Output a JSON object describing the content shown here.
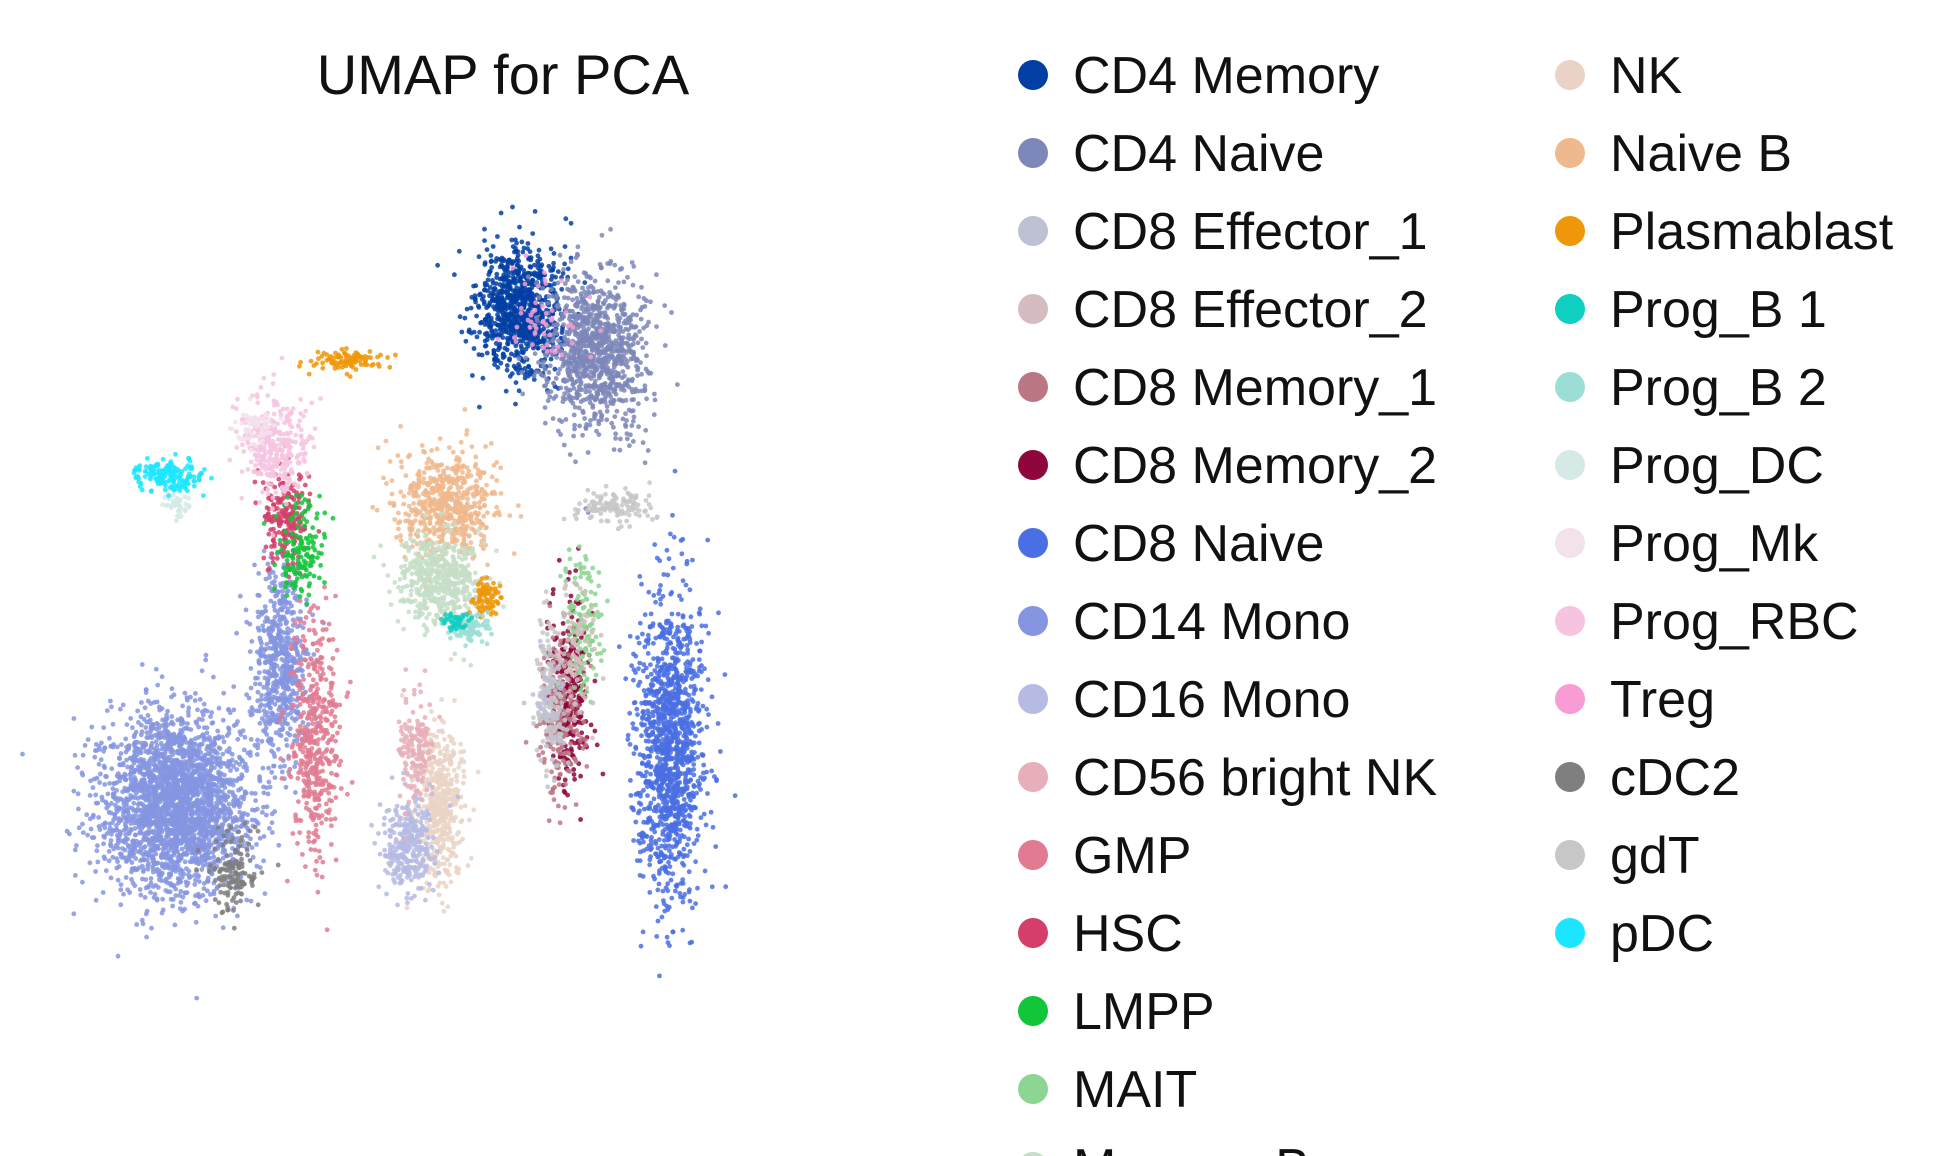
{
  "chart_data": {
    "type": "scatter",
    "title": "UMAP for PCA",
    "xlabel": "",
    "ylabel": "",
    "grid": false,
    "axes_visible": false,
    "legend_placement": "right, two columns",
    "categories": [
      {
        "name": "CD4 Memory",
        "color": "#023fa5"
      },
      {
        "name": "CD4 Naive",
        "color": "#7d87b9"
      },
      {
        "name": "CD8 Effector_1",
        "color": "#bec1d4"
      },
      {
        "name": "CD8 Effector_2",
        "color": "#d6bcc0"
      },
      {
        "name": "CD8 Memory_1",
        "color": "#bb7784"
      },
      {
        "name": "CD8 Memory_2",
        "color": "#8e063b"
      },
      {
        "name": "CD8 Naive",
        "color": "#4a6fe3"
      },
      {
        "name": "CD14 Mono",
        "color": "#8595e1"
      },
      {
        "name": "CD16 Mono",
        "color": "#b5bbe3"
      },
      {
        "name": "CD56 bright NK",
        "color": "#e6afb9"
      },
      {
        "name": "GMP",
        "color": "#e07b91"
      },
      {
        "name": "HSC",
        "color": "#d33f6a"
      },
      {
        "name": "LMPP",
        "color": "#11c638"
      },
      {
        "name": "MAIT",
        "color": "#8dd593"
      },
      {
        "name": "Memory B",
        "color": "#c6dec7"
      },
      {
        "name": "NK",
        "color": "#ead3c6"
      },
      {
        "name": "Naive B",
        "color": "#f0b98d"
      },
      {
        "name": "Plasmablast",
        "color": "#ef9708"
      },
      {
        "name": "Prog_B 1",
        "color": "#0fcfc0"
      },
      {
        "name": "Prog_B 2",
        "color": "#9cded6"
      },
      {
        "name": "Prog_DC",
        "color": "#d5eae7"
      },
      {
        "name": "Prog_Mk",
        "color": "#f3e1eb"
      },
      {
        "name": "Prog_RBC",
        "color": "#f6c4e1"
      },
      {
        "name": "Treg",
        "color": "#f79cd4"
      },
      {
        "name": "cDC2",
        "color": "#7f7f7f"
      },
      {
        "name": "gdT",
        "color": "#c7c7c7"
      },
      {
        "name": "pDC",
        "color": "#1ce6ff"
      }
    ],
    "clusters": [
      {
        "cells": "CD4 Memory",
        "x": 5.7,
        "y": 9.0,
        "sx": 0.75,
        "sy": 0.95,
        "n": 900
      },
      {
        "cells": "CD4 Naive",
        "x": 7.2,
        "y": 8.4,
        "sx": 0.9,
        "sy": 1.2,
        "n": 1000
      },
      {
        "cells": "CD8 Naive",
        "x": 8.7,
        "y": 1.8,
        "sx": 0.6,
        "sy": 2.2,
        "n": 1300
      },
      {
        "cells": "CD8 Memory_2",
        "x": 6.7,
        "y": 2.8,
        "sx": 0.35,
        "sy": 1.4,
        "n": 300
      },
      {
        "cells": "CD8 Memory_1",
        "x": 6.5,
        "y": 2.2,
        "sx": 0.4,
        "sy": 1.2,
        "n": 180
      },
      {
        "cells": "MAIT",
        "x": 7.0,
        "y": 3.8,
        "sx": 0.35,
        "sy": 1.1,
        "n": 140
      },
      {
        "cells": "gdT",
        "x": 6.3,
        "y": 2.8,
        "sx": 0.25,
        "sy": 1.2,
        "n": 120
      },
      {
        "cells": "CD8 Effector_1",
        "x": 6.3,
        "y": 2.5,
        "sx": 0.3,
        "sy": 1.0,
        "n": 80
      },
      {
        "cells": "CD8 Effector_2",
        "x": 6.8,
        "y": 3.4,
        "sx": 0.4,
        "sy": 1.0,
        "n": 80
      },
      {
        "cells": "gdT",
        "x": 7.6,
        "y": 5.8,
        "sx": 0.8,
        "sy": 0.25,
        "n": 120
      },
      {
        "cells": "Naive B",
        "x": 4.2,
        "y": 5.8,
        "sx": 0.9,
        "sy": 0.8,
        "n": 600
      },
      {
        "cells": "Memory B",
        "x": 4.1,
        "y": 4.6,
        "sx": 0.8,
        "sy": 0.7,
        "n": 500
      },
      {
        "cells": "Plasmablast",
        "x": 5.0,
        "y": 4.3,
        "sx": 0.25,
        "sy": 0.3,
        "n": 80
      },
      {
        "cells": "Prog_B 2",
        "x": 4.7,
        "y": 3.8,
        "sx": 0.35,
        "sy": 0.2,
        "n": 90
      },
      {
        "cells": "Prog_B 1",
        "x": 4.4,
        "y": 3.9,
        "sx": 0.25,
        "sy": 0.15,
        "n": 40
      },
      {
        "cells": "NK",
        "x": 4.1,
        "y": 0.9,
        "sx": 0.45,
        "sy": 1.2,
        "n": 450
      },
      {
        "cells": "CD16 Mono",
        "x": 3.4,
        "y": 0.2,
        "sx": 0.5,
        "sy": 0.7,
        "n": 300
      },
      {
        "cells": "CD56 bright NK",
        "x": 3.6,
        "y": 1.8,
        "sx": 0.3,
        "sy": 0.8,
        "n": 150
      },
      {
        "cells": "CD14 Mono",
        "x": -1.2,
        "y": 0.9,
        "sx": 1.3,
        "sy": 1.3,
        "n": 2600
      },
      {
        "cells": "CD14 Mono",
        "x": 0.9,
        "y": 3.2,
        "sx": 0.5,
        "sy": 1.4,
        "n": 600
      },
      {
        "cells": "GMP",
        "x": 1.6,
        "y": 2.0,
        "sx": 0.45,
        "sy": 1.8,
        "n": 450
      },
      {
        "cells": "HSC",
        "x": 1.0,
        "y": 5.6,
        "sx": 0.4,
        "sy": 0.7,
        "n": 220
      },
      {
        "cells": "LMPP",
        "x": 1.3,
        "y": 5.1,
        "sx": 0.45,
        "sy": 0.8,
        "n": 140
      },
      {
        "cells": "Prog_RBC",
        "x": 0.8,
        "y": 6.8,
        "sx": 0.6,
        "sy": 0.7,
        "n": 320
      },
      {
        "cells": "Prog_Mk",
        "x": 0.4,
        "y": 7.1,
        "sx": 0.4,
        "sy": 0.3,
        "n": 60
      },
      {
        "cells": "cDC2",
        "x": 0.0,
        "y": -0.2,
        "sx": 0.5,
        "sy": 0.6,
        "n": 140
      },
      {
        "cells": "Prog_DC",
        "x": -1.2,
        "y": 5.8,
        "sx": 0.3,
        "sy": 0.25,
        "n": 40
      },
      {
        "cells": "pDC",
        "x": -1.3,
        "y": 6.3,
        "sx": 0.55,
        "sy": 0.25,
        "n": 170
      },
      {
        "cells": "Treg",
        "x": 6.2,
        "y": 8.8,
        "sx": 0.8,
        "sy": 0.8,
        "n": 50
      },
      {
        "cells": "Plasmablast",
        "x": 2.2,
        "y": 8.2,
        "sx": 0.7,
        "sy": 0.15,
        "n": 90
      }
    ],
    "xlim": [
      -3.5,
      10.5
    ],
    "ylim": [
      -2.5,
      11.5
    ]
  }
}
